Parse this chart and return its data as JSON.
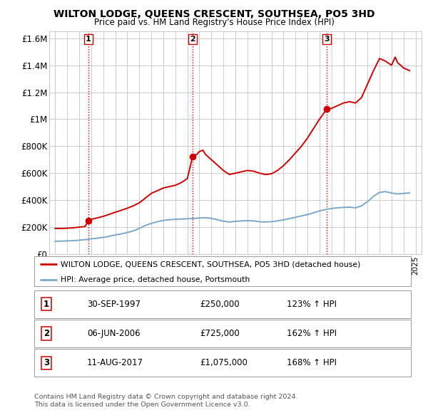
{
  "title": "WILTON LODGE, QUEENS CRESCENT, SOUTHSEA, PO5 3HD",
  "subtitle": "Price paid vs. HM Land Registry's House Price Index (HPI)",
  "ylim": [
    0,
    1650000
  ],
  "yticks": [
    0,
    200000,
    400000,
    600000,
    800000,
    1000000,
    1200000,
    1400000,
    1600000
  ],
  "ytick_labels": [
    "£0",
    "£200K",
    "£400K",
    "£600K",
    "£800K",
    "£1M",
    "£1.2M",
    "£1.4M",
    "£1.6M"
  ],
  "xmin": 1994.5,
  "xmax": 2025.5,
  "line1_color": "#cc0000",
  "line2_color": "#7ba7c9",
  "marker_color": "#cc0000",
  "vline_color": "#cc0000",
  "grid_color": "#cccccc",
  "bg_color": "#ffffff",
  "legend_label1": "WILTON LODGE, QUEENS CRESCENT, SOUTHSEA, PO5 3HD (detached house)",
  "legend_label2": "HPI: Average price, detached house, Portsmouth",
  "transactions": [
    {
      "num": 1,
      "date": "30-SEP-1997",
      "price": "£250,000",
      "hpi": "123% ↑ HPI",
      "year": 1997.75
    },
    {
      "num": 2,
      "date": "06-JUN-2006",
      "price": "£725,000",
      "hpi": "162% ↑ HPI",
      "year": 2006.44
    },
    {
      "num": 3,
      "date": "11-AUG-2017",
      "price": "£1,075,000",
      "hpi": "168% ↑ HPI",
      "year": 2017.61
    }
  ],
  "transaction_values": [
    250000,
    725000,
    1075000
  ],
  "footer": "Contains HM Land Registry data © Crown copyright and database right 2024.\nThis data is licensed under the Open Government Licence v3.0.",
  "hpi_line": {
    "years": [
      1995.0,
      1995.5,
      1996.0,
      1996.5,
      1997.0,
      1997.5,
      1998.0,
      1998.5,
      1999.0,
      1999.5,
      2000.0,
      2000.5,
      2001.0,
      2001.5,
      2002.0,
      2002.5,
      2003.0,
      2003.5,
      2004.0,
      2004.5,
      2005.0,
      2005.5,
      2006.0,
      2006.5,
      2007.0,
      2007.5,
      2008.0,
      2008.5,
      2009.0,
      2009.5,
      2010.0,
      2010.5,
      2011.0,
      2011.5,
      2012.0,
      2012.5,
      2013.0,
      2013.5,
      2014.0,
      2014.5,
      2015.0,
      2015.5,
      2016.0,
      2016.5,
      2017.0,
      2017.5,
      2018.0,
      2018.5,
      2019.0,
      2019.5,
      2020.0,
      2020.5,
      2021.0,
      2021.5,
      2022.0,
      2022.5,
      2023.0,
      2023.5,
      2024.0,
      2024.5
    ],
    "values": [
      95000,
      96000,
      98000,
      100000,
      103000,
      107000,
      113000,
      118000,
      124000,
      132000,
      142000,
      150000,
      160000,
      172000,
      190000,
      212000,
      228000,
      240000,
      250000,
      255000,
      258000,
      260000,
      262000,
      264000,
      268000,
      270000,
      265000,
      255000,
      244000,
      238000,
      243000,
      246000,
      248000,
      246000,
      240000,
      238000,
      240000,
      246000,
      254000,
      263000,
      273000,
      283000,
      293000,
      306000,
      320000,
      330000,
      338000,
      343000,
      346000,
      348000,
      343000,
      358000,
      388000,
      428000,
      458000,
      463000,
      453000,
      446000,
      450000,
      453000
    ]
  },
  "price_line": {
    "years": [
      1995.0,
      1995.5,
      1996.0,
      1996.5,
      1997.0,
      1997.5,
      1997.75,
      1998.0,
      1998.5,
      1999.0,
      1999.5,
      2000.0,
      2000.5,
      2001.0,
      2001.5,
      2002.0,
      2002.5,
      2003.0,
      2003.5,
      2004.0,
      2004.5,
      2005.0,
      2005.5,
      2006.0,
      2006.44,
      2006.8,
      2007.0,
      2007.3,
      2007.5,
      2008.0,
      2008.5,
      2009.0,
      2009.5,
      2010.0,
      2010.5,
      2011.0,
      2011.5,
      2012.0,
      2012.5,
      2013.0,
      2013.5,
      2014.0,
      2014.5,
      2015.0,
      2015.5,
      2016.0,
      2016.5,
      2017.0,
      2017.61,
      2018.0,
      2018.5,
      2019.0,
      2019.5,
      2020.0,
      2020.5,
      2021.0,
      2021.5,
      2022.0,
      2022.5,
      2023.0,
      2023.3,
      2023.5,
      2024.0,
      2024.5
    ],
    "values": [
      190000,
      190000,
      192000,
      195000,
      200000,
      205000,
      250000,
      258000,
      268000,
      280000,
      295000,
      310000,
      325000,
      340000,
      358000,
      380000,
      415000,
      450000,
      470000,
      490000,
      500000,
      510000,
      530000,
      560000,
      725000,
      740000,
      760000,
      770000,
      740000,
      700000,
      660000,
      620000,
      590000,
      600000,
      610000,
      620000,
      615000,
      600000,
      590000,
      595000,
      620000,
      655000,
      700000,
      750000,
      800000,
      860000,
      930000,
      1000000,
      1075000,
      1080000,
      1100000,
      1120000,
      1130000,
      1120000,
      1160000,
      1260000,
      1360000,
      1450000,
      1430000,
      1400000,
      1460000,
      1420000,
      1380000,
      1360000
    ]
  }
}
